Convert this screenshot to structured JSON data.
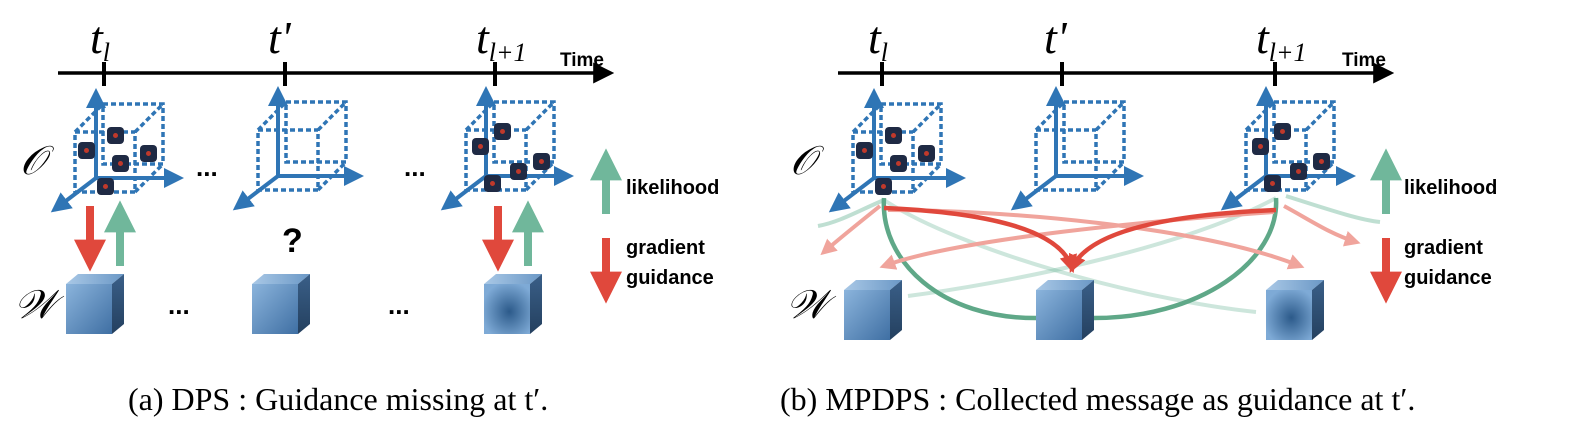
{
  "colors": {
    "axis_blue": "#2f75b5",
    "guidance_red": "#e0483c",
    "likelihood_green": "#70b79b",
    "node_dark": "#1f2a44",
    "node_dot": "#c0392b",
    "cube_blue": "#5b8bc0"
  },
  "panels": [
    {
      "id": "a",
      "timeline": {
        "ticks": [
          {
            "base": "t",
            "sub": "l"
          },
          {
            "base": "t'",
            "sub": ""
          },
          {
            "base": "t",
            "sub": "l+1"
          }
        ],
        "axis_label": "Time"
      },
      "observation_label": "𝒪",
      "weight_label": "𝒲",
      "ellipsis": "...",
      "missing_mark": "?",
      "legend": {
        "likelihood": "likelihood",
        "gradient_line1": "gradient",
        "gradient_line2": "guidance"
      },
      "caption": "(a) DPS : Guidance missing at t′."
    },
    {
      "id": "b",
      "timeline": {
        "ticks": [
          {
            "base": "t",
            "sub": "l"
          },
          {
            "base": "t'",
            "sub": ""
          },
          {
            "base": "t",
            "sub": "l+1"
          }
        ],
        "axis_label": "Time"
      },
      "observation_label": "𝒪",
      "weight_label": "𝒲",
      "legend": {
        "likelihood": "likelihood",
        "gradient_line1": "gradient",
        "gradient_line2": "guidance"
      },
      "caption": "(b) MPDPS : Collected message as guidance at t′."
    }
  ]
}
